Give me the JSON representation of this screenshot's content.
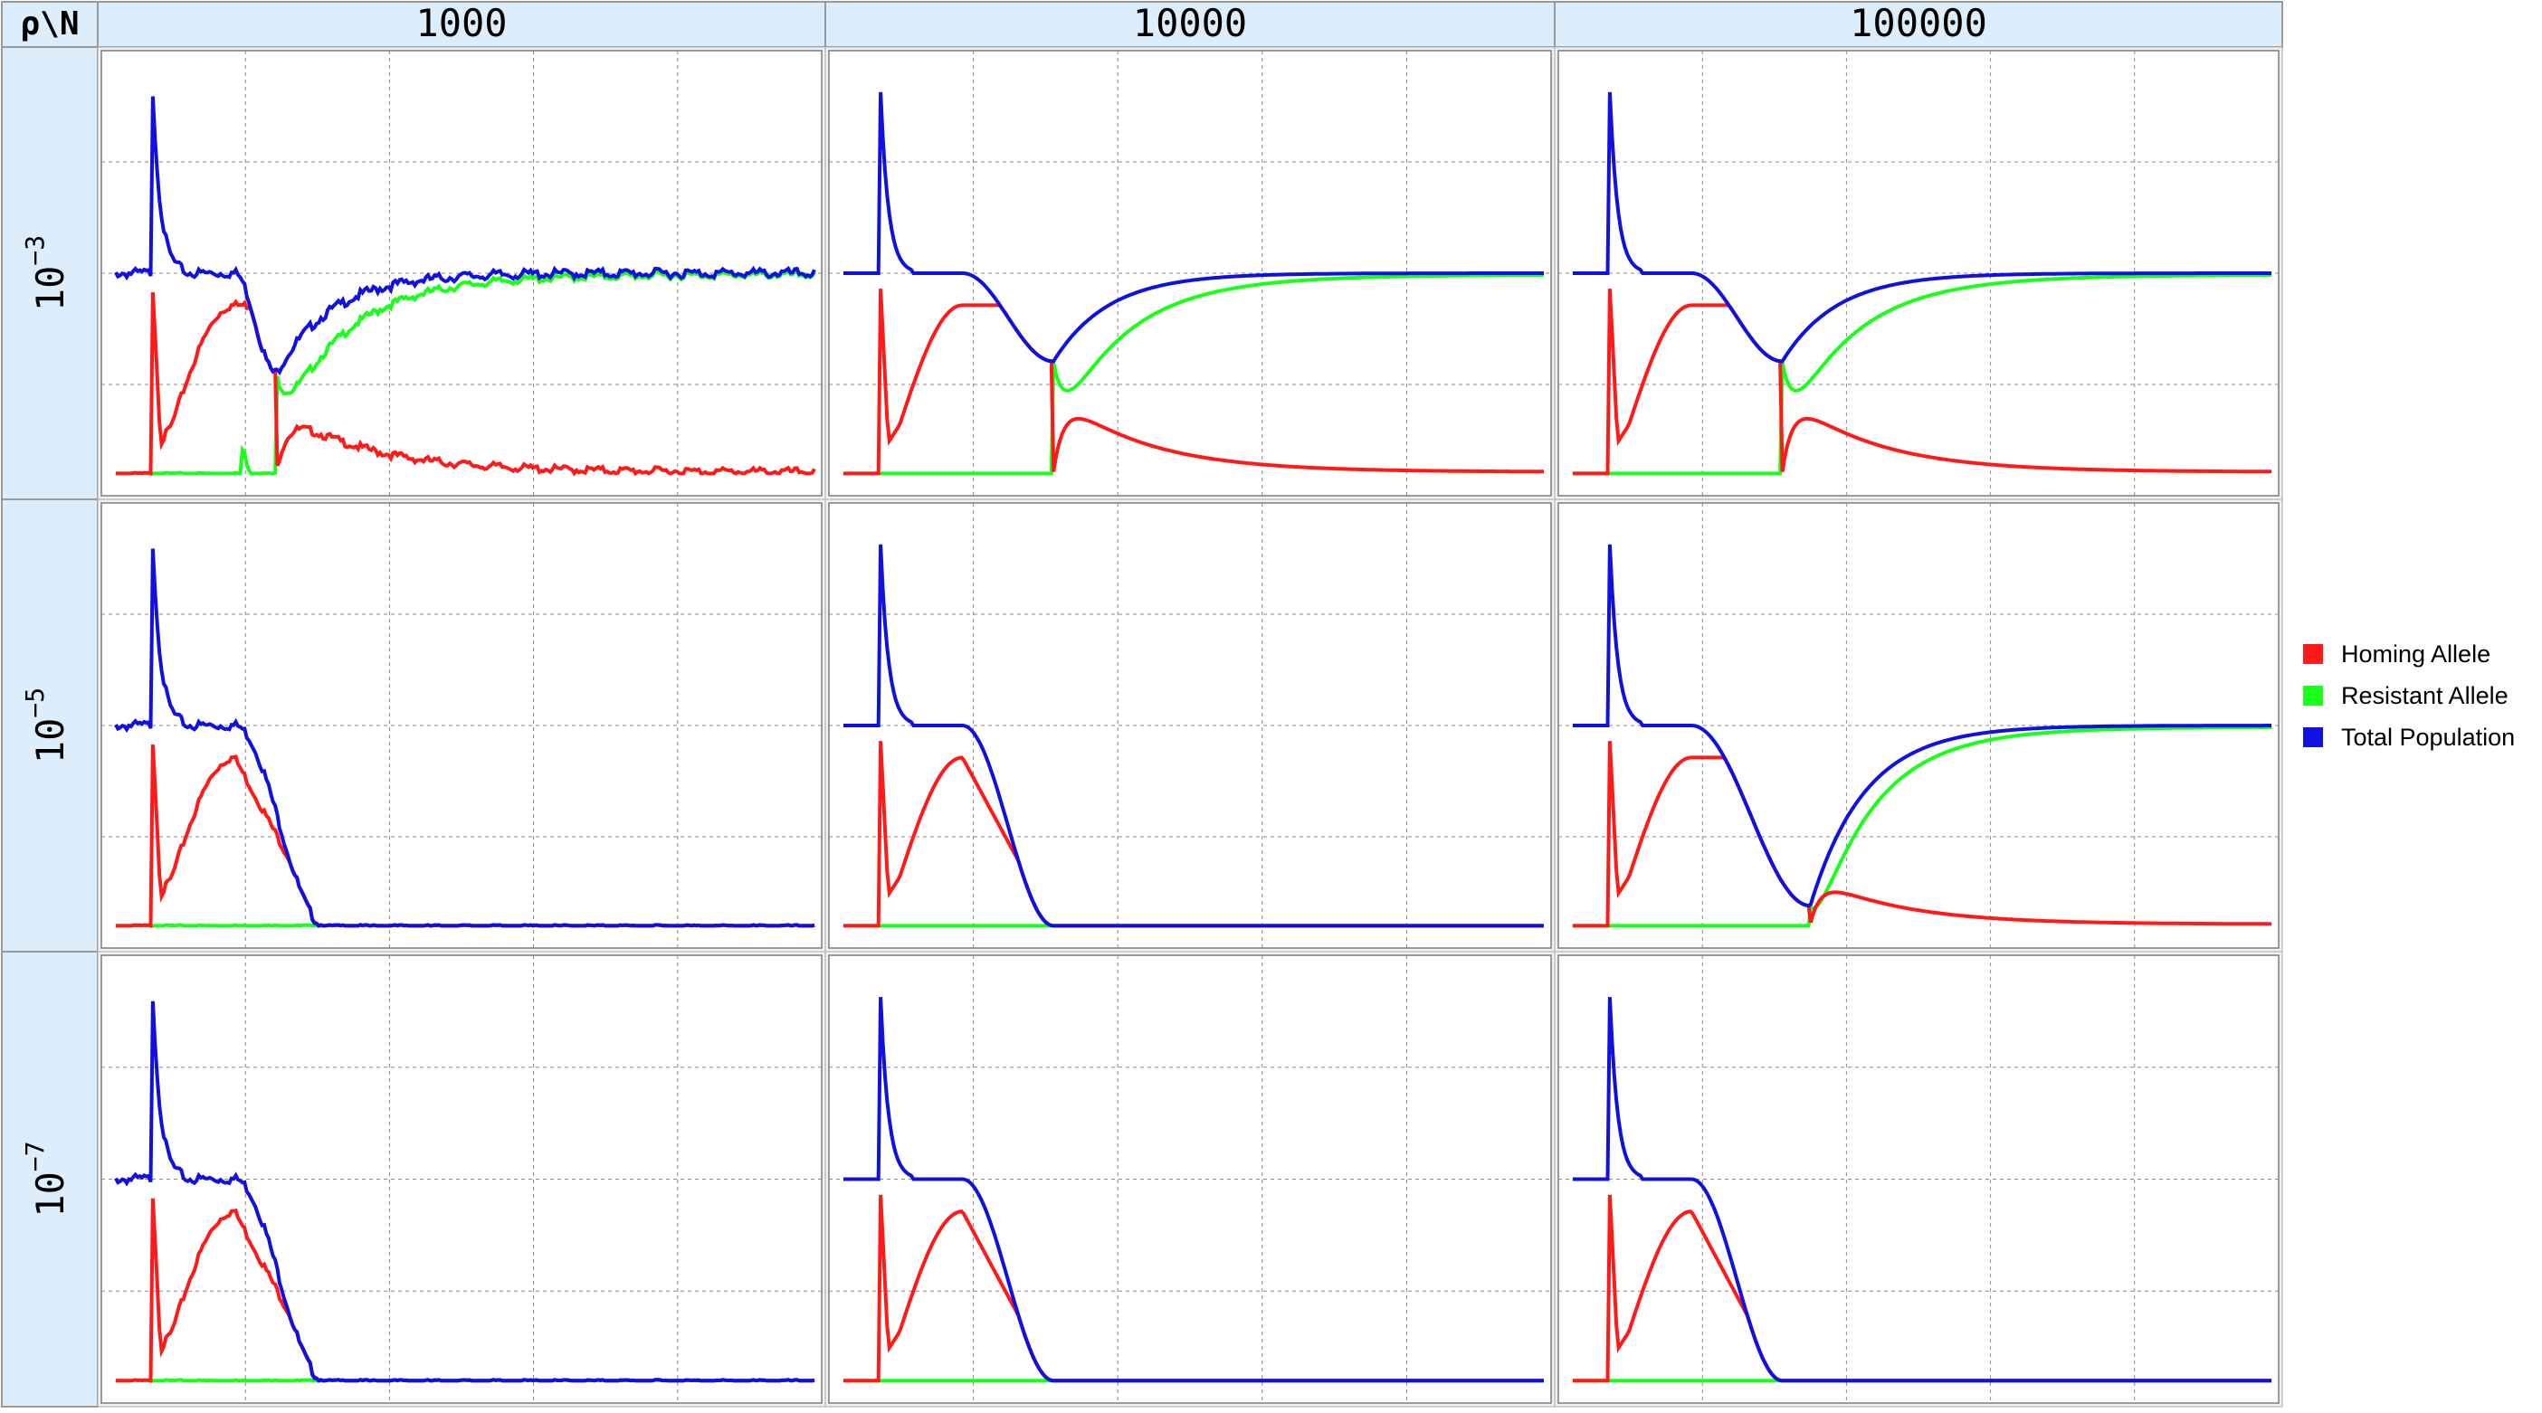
{
  "corner_label": "ρ\\N",
  "columns": [
    {
      "label": "1000"
    },
    {
      "label": "10000"
    },
    {
      "label": "100000"
    }
  ],
  "rows": [
    {
      "base": "10",
      "exp": "−3"
    },
    {
      "base": "10",
      "exp": "−5"
    },
    {
      "base": "10",
      "exp": "−7"
    }
  ],
  "colors": {
    "homing": "#ff1a1a",
    "resistant": "#1aff1a",
    "total": "#1010e0",
    "header_bg": "#dceefb"
  },
  "legend": [
    {
      "label": "Homing Allele",
      "color": "#ff1a1a"
    },
    {
      "label": "Resistant Allele",
      "color": "#1aff1a"
    },
    {
      "label": "Total Population",
      "color": "#1010e0"
    }
  ],
  "chart_data": {
    "type": "line",
    "layout": "grid",
    "grid": true,
    "legend_position": "right",
    "panels": [
      {
        "row": 0,
        "col": 0,
        "noise": 1,
        "outcome": "rescue",
        "min_total": 0.25,
        "min_t": 0.23,
        "bump": 0.16
      },
      {
        "row": 0,
        "col": 1,
        "noise": 0,
        "outcome": "rescue",
        "min_total": 0.28,
        "min_t": 0.3,
        "bump": 0.2
      },
      {
        "row": 0,
        "col": 2,
        "noise": 0,
        "outcome": "rescue",
        "min_total": 0.28,
        "min_t": 0.3,
        "bump": 0.2
      },
      {
        "row": 1,
        "col": 0,
        "noise": 1,
        "outcome": "extinction"
      },
      {
        "row": 1,
        "col": 1,
        "noise": 0,
        "outcome": "extinction"
      },
      {
        "row": 1,
        "col": 2,
        "noise": 0,
        "outcome": "rescue",
        "min_total": 0.05,
        "min_t": 0.34,
        "bump": 0.12
      },
      {
        "row": 2,
        "col": 0,
        "noise": 1,
        "outcome": "extinction"
      },
      {
        "row": 2,
        "col": 1,
        "noise": 0,
        "outcome": "extinction"
      },
      {
        "row": 2,
        "col": 2,
        "noise": 0,
        "outcome": "extinction"
      }
    ]
  }
}
